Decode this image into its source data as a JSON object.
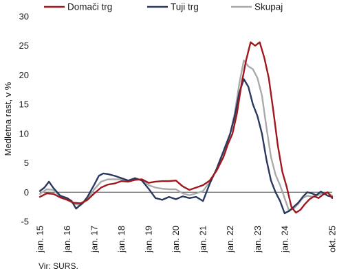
{
  "chart_data": {
    "type": "line",
    "ylabel": "Medletna rast, v %",
    "ylim": [
      -5,
      30
    ],
    "yticks": [
      -5,
      0,
      5,
      10,
      15,
      20,
      25,
      30
    ],
    "xlim": [
      "2015-01",
      "2025-10"
    ],
    "xticks": [
      {
        "date": "2015-01",
        "label": "jan. 15"
      },
      {
        "date": "2016-01",
        "label": "jan. 16"
      },
      {
        "date": "2017-01",
        "label": "jan. 17"
      },
      {
        "date": "2018-01",
        "label": "jan. 18"
      },
      {
        "date": "2019-01",
        "label": "jan. 19"
      },
      {
        "date": "2020-01",
        "label": "jan. 20"
      },
      {
        "date": "2021-01",
        "label": "jan. 21"
      },
      {
        "date": "2022-01",
        "label": "jan. 22"
      },
      {
        "date": "2023-01",
        "label": "jan. 23"
      },
      {
        "date": "2024-01",
        "label": "jan. 24"
      },
      {
        "date": "2025-10",
        "label": "okt. 25"
      }
    ],
    "legend_position": "top",
    "grid": false,
    "series": [
      {
        "name": "Domači trg",
        "color": "#a0171e",
        "points": [
          [
            "2015-01",
            -0.8
          ],
          [
            "2015-04",
            -0.2
          ],
          [
            "2015-07",
            -0.3
          ],
          [
            "2015-10",
            -0.9
          ],
          [
            "2016-01",
            -1.3
          ],
          [
            "2016-04",
            -1.8
          ],
          [
            "2016-07",
            -1.9
          ],
          [
            "2016-10",
            -1.3
          ],
          [
            "2017-01",
            -0.2
          ],
          [
            "2017-04",
            0.8
          ],
          [
            "2017-07",
            1.3
          ],
          [
            "2017-10",
            1.5
          ],
          [
            "2018-01",
            1.9
          ],
          [
            "2018-04",
            1.8
          ],
          [
            "2018-07",
            2.1
          ],
          [
            "2018-10",
            2.2
          ],
          [
            "2019-01",
            1.6
          ],
          [
            "2019-04",
            1.8
          ],
          [
            "2019-07",
            1.9
          ],
          [
            "2019-10",
            1.9
          ],
          [
            "2020-01",
            2.0
          ],
          [
            "2020-04",
            1.0
          ],
          [
            "2020-07",
            0.4
          ],
          [
            "2020-10",
            0.8
          ],
          [
            "2021-01",
            1.2
          ],
          [
            "2021-04",
            2.0
          ],
          [
            "2021-07",
            3.7
          ],
          [
            "2021-10",
            6.0
          ],
          [
            "2021-12",
            8.2
          ],
          [
            "2022-02",
            10.0
          ],
          [
            "2022-04",
            13.5
          ],
          [
            "2022-06",
            18.5
          ],
          [
            "2022-08",
            22.5
          ],
          [
            "2022-10",
            25.6
          ],
          [
            "2022-12",
            25.0
          ],
          [
            "2023-02",
            25.6
          ],
          [
            "2023-04",
            23.0
          ],
          [
            "2023-06",
            19.5
          ],
          [
            "2023-08",
            14.0
          ],
          [
            "2023-10",
            8.0
          ],
          [
            "2023-12",
            3.5
          ],
          [
            "2024-02",
            0.8
          ],
          [
            "2024-04",
            -2.5
          ],
          [
            "2024-06",
            -3.5
          ],
          [
            "2024-08",
            -3.0
          ],
          [
            "2024-10",
            -2.0
          ],
          [
            "2024-12",
            -1.2
          ],
          [
            "2025-02",
            -0.7
          ],
          [
            "2025-04",
            -1.0
          ],
          [
            "2025-06",
            -0.4
          ],
          [
            "2025-08",
            0.0
          ],
          [
            "2025-10",
            -1.0
          ]
        ]
      },
      {
        "name": "Tuji trg",
        "color": "#28385e",
        "points": [
          [
            "2015-01",
            0.2
          ],
          [
            "2015-03",
            0.8
          ],
          [
            "2015-05",
            1.8
          ],
          [
            "2015-07",
            0.7
          ],
          [
            "2015-10",
            -0.6
          ],
          [
            "2016-01",
            -1.0
          ],
          [
            "2016-03",
            -1.5
          ],
          [
            "2016-05",
            -2.8
          ],
          [
            "2016-08",
            -1.8
          ],
          [
            "2016-10",
            -0.8
          ],
          [
            "2017-01",
            1.3
          ],
          [
            "2017-03",
            2.8
          ],
          [
            "2017-05",
            3.2
          ],
          [
            "2017-07",
            3.1
          ],
          [
            "2017-10",
            2.8
          ],
          [
            "2018-01",
            2.4
          ],
          [
            "2018-04",
            2.0
          ],
          [
            "2018-07",
            2.4
          ],
          [
            "2018-10",
            2.0
          ],
          [
            "2019-01",
            0.6
          ],
          [
            "2019-04",
            -1.0
          ],
          [
            "2019-07",
            -1.3
          ],
          [
            "2019-10",
            -0.8
          ],
          [
            "2020-01",
            -1.2
          ],
          [
            "2020-04",
            -0.7
          ],
          [
            "2020-07",
            -1.0
          ],
          [
            "2020-10",
            -0.8
          ],
          [
            "2021-01",
            -1.5
          ],
          [
            "2021-04",
            1.5
          ],
          [
            "2021-07",
            4.0
          ],
          [
            "2021-10",
            7.0
          ],
          [
            "2022-01",
            10.0
          ],
          [
            "2022-03",
            13.0
          ],
          [
            "2022-05",
            17.0
          ],
          [
            "2022-07",
            19.3
          ],
          [
            "2022-09",
            18.0
          ],
          [
            "2022-11",
            15.0
          ],
          [
            "2023-01",
            13.0
          ],
          [
            "2023-03",
            10.0
          ],
          [
            "2023-05",
            5.5
          ],
          [
            "2023-07",
            2.0
          ],
          [
            "2023-09",
            0.0
          ],
          [
            "2023-11",
            -1.5
          ],
          [
            "2024-01",
            -3.6
          ],
          [
            "2024-03",
            -3.2
          ],
          [
            "2024-05",
            -2.5
          ],
          [
            "2024-07",
            -1.8
          ],
          [
            "2024-09",
            -0.8
          ],
          [
            "2024-11",
            0.0
          ],
          [
            "2025-01",
            -0.2
          ],
          [
            "2025-03",
            -0.5
          ],
          [
            "2025-05",
            0.1
          ],
          [
            "2025-08",
            -0.6
          ],
          [
            "2025-10",
            -0.8
          ]
        ]
      },
      {
        "name": "Skupaj",
        "color": "#aaaaaa",
        "points": [
          [
            "2015-01",
            -0.3
          ],
          [
            "2015-04",
            0.5
          ],
          [
            "2015-07",
            0.4
          ],
          [
            "2015-10",
            -0.8
          ],
          [
            "2016-01",
            -1.2
          ],
          [
            "2016-04",
            -2.0
          ],
          [
            "2016-07",
            -2.2
          ],
          [
            "2016-10",
            -1.2
          ],
          [
            "2017-01",
            0.5
          ],
          [
            "2017-04",
            1.8
          ],
          [
            "2017-07",
            2.2
          ],
          [
            "2017-10",
            2.2
          ],
          [
            "2018-01",
            2.2
          ],
          [
            "2018-04",
            1.9
          ],
          [
            "2018-07",
            2.3
          ],
          [
            "2018-10",
            2.1
          ],
          [
            "2019-01",
            1.2
          ],
          [
            "2019-04",
            0.8
          ],
          [
            "2019-07",
            0.6
          ],
          [
            "2019-10",
            0.5
          ],
          [
            "2020-01",
            0.5
          ],
          [
            "2020-04",
            -0.2
          ],
          [
            "2020-07",
            -0.5
          ],
          [
            "2020-10",
            -0.2
          ],
          [
            "2021-01",
            0.2
          ],
          [
            "2021-04",
            1.8
          ],
          [
            "2021-07",
            3.8
          ],
          [
            "2021-10",
            6.5
          ],
          [
            "2022-01",
            10.0
          ],
          [
            "2022-03",
            13.5
          ],
          [
            "2022-05",
            18.5
          ],
          [
            "2022-07",
            22.5
          ],
          [
            "2022-09",
            21.5
          ],
          [
            "2022-11",
            21.0
          ],
          [
            "2023-01",
            19.5
          ],
          [
            "2023-03",
            16.5
          ],
          [
            "2023-05",
            11.0
          ],
          [
            "2023-07",
            6.0
          ],
          [
            "2023-09",
            3.0
          ],
          [
            "2023-11",
            1.2
          ],
          [
            "2024-01",
            -1.0
          ],
          [
            "2024-03",
            -3.2
          ],
          [
            "2024-05",
            -2.8
          ],
          [
            "2024-07",
            -2.0
          ],
          [
            "2024-09",
            -1.0
          ],
          [
            "2024-11",
            -0.6
          ],
          [
            "2025-02",
            -0.8
          ],
          [
            "2025-05",
            -0.3
          ],
          [
            "2025-08",
            -0.1
          ],
          [
            "2025-10",
            -0.6
          ]
        ]
      }
    ]
  },
  "source": "Vir: SURS."
}
